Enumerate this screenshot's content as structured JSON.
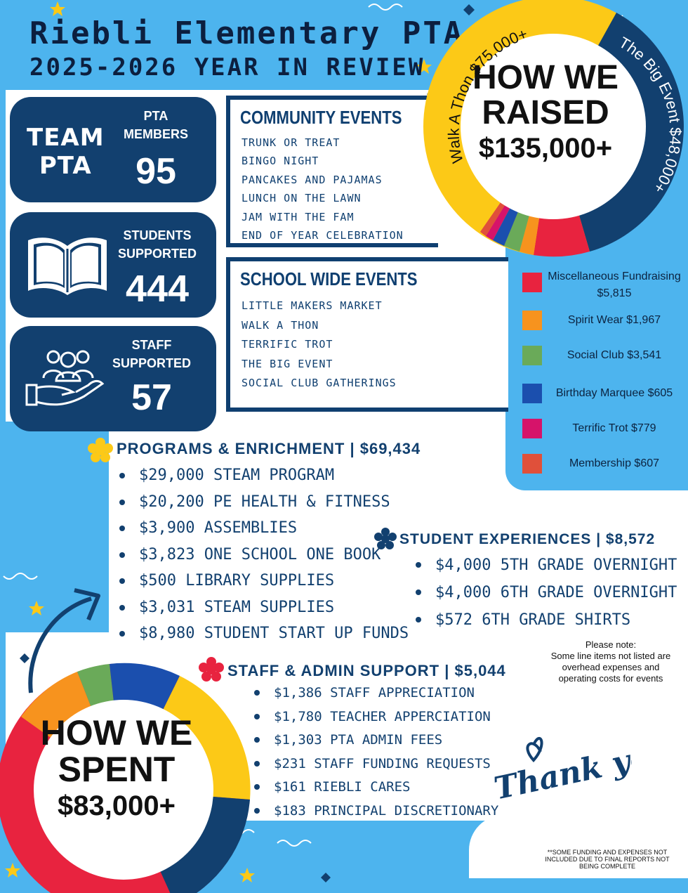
{
  "header": {
    "title": "Riebli Elementary PTA",
    "subtitle": "2025-2026 YEAR IN REVIEW"
  },
  "stats": {
    "team": [
      "TEAM",
      "PTA"
    ],
    "members_label": [
      "PTA",
      "MEMBERS"
    ],
    "members_value": "95",
    "students_label": [
      "STUDENTS",
      "SUPPORTED"
    ],
    "students_value": "444",
    "staff_label": [
      "STAFF",
      "SUPPORTED"
    ],
    "staff_value": "57"
  },
  "community_events": {
    "heading": "COMMUNITY EVENTS",
    "items": [
      "TRUNK OR TREAT",
      "BINGO NIGHT",
      "PANCAKES AND PAJAMAS",
      "LUNCH ON THE LAWN",
      "JAM WITH THE FAM",
      "END OF YEAR CELEBRATION"
    ]
  },
  "school_events": {
    "heading": "SCHOOL WIDE EVENTS",
    "items": [
      "LITTLE MAKERS MARKET",
      "WALK A THON",
      "TERRIFIC TROT",
      "THE BIG EVENT",
      "SOCIAL CLUB GATHERINGS"
    ]
  },
  "raised": {
    "lines": [
      "HOW WE",
      "RAISED",
      "$135,000+"
    ],
    "arc_walk": "Walk A Thon $75,000+",
    "arc_big": "The Big Event $48,000+",
    "legend": [
      {
        "label": "Miscellaneous Fundraising $5,815",
        "color": "#e8233f"
      },
      {
        "label": "Spirit Wear  $1,967",
        "color": "#f7931e"
      },
      {
        "label": "Social Club $3,541",
        "color": "#6aaa59"
      },
      {
        "label": "Birthday Marquee $605",
        "color": "#1b4fae"
      },
      {
        "label": "Terrific Trot $779",
        "color": "#d6136a"
      },
      {
        "label": "Membership $607",
        "color": "#e0503a"
      }
    ],
    "colors": {
      "walk": "#fcc917",
      "big": "#12406f"
    }
  },
  "programs": {
    "heading": "PROGRAMS & ENRICHMENT | $69,434",
    "items": [
      "$29,000 STEAM PROGRAM",
      "$20,200 PE HEALTH & FITNESS",
      "$3,900 ASSEMBLIES",
      "$3,823 ONE SCHOOL ONE BOOK",
      "$500 LIBRARY SUPPLIES",
      "$3,031 STEAM SUPPLIES",
      "$8,980 STUDENT START UP FUNDS"
    ]
  },
  "student_exp": {
    "heading": "STUDENT EXPERIENCES | $8,572",
    "items": [
      "$4,000 5TH GRADE OVERNIGHT",
      "$4,000 6TH GRADE OVERNIGHT",
      " $572 6TH GRADE SHIRTS"
    ]
  },
  "staff_admin": {
    "heading": "STAFF & ADMIN SUPPORT | $5,044",
    "items": [
      "$1,386 STAFF APPRECIATION",
      "$1,780 TEACHER APPERCIATION",
      "$1,303 PTA ADMIN FEES",
      "$231 STAFF FUNDING REQUESTS",
      "$161 RIEBLI CARES",
      "$183 PRINCIPAL DISCRETIONARY"
    ]
  },
  "note": {
    "title": "Please note:",
    "text": "Some line items not listed are overhead expenses and operating costs for events"
  },
  "spent": {
    "lines": [
      "HOW WE",
      "SPENT",
      "$83,000+"
    ]
  },
  "thank_you": "Thank you",
  "footnote": "**SOME FUNDING AND EXPENSES NOT INCLUDED DUE TO FINAL REPORTS NOT BEING COMPLETE"
}
